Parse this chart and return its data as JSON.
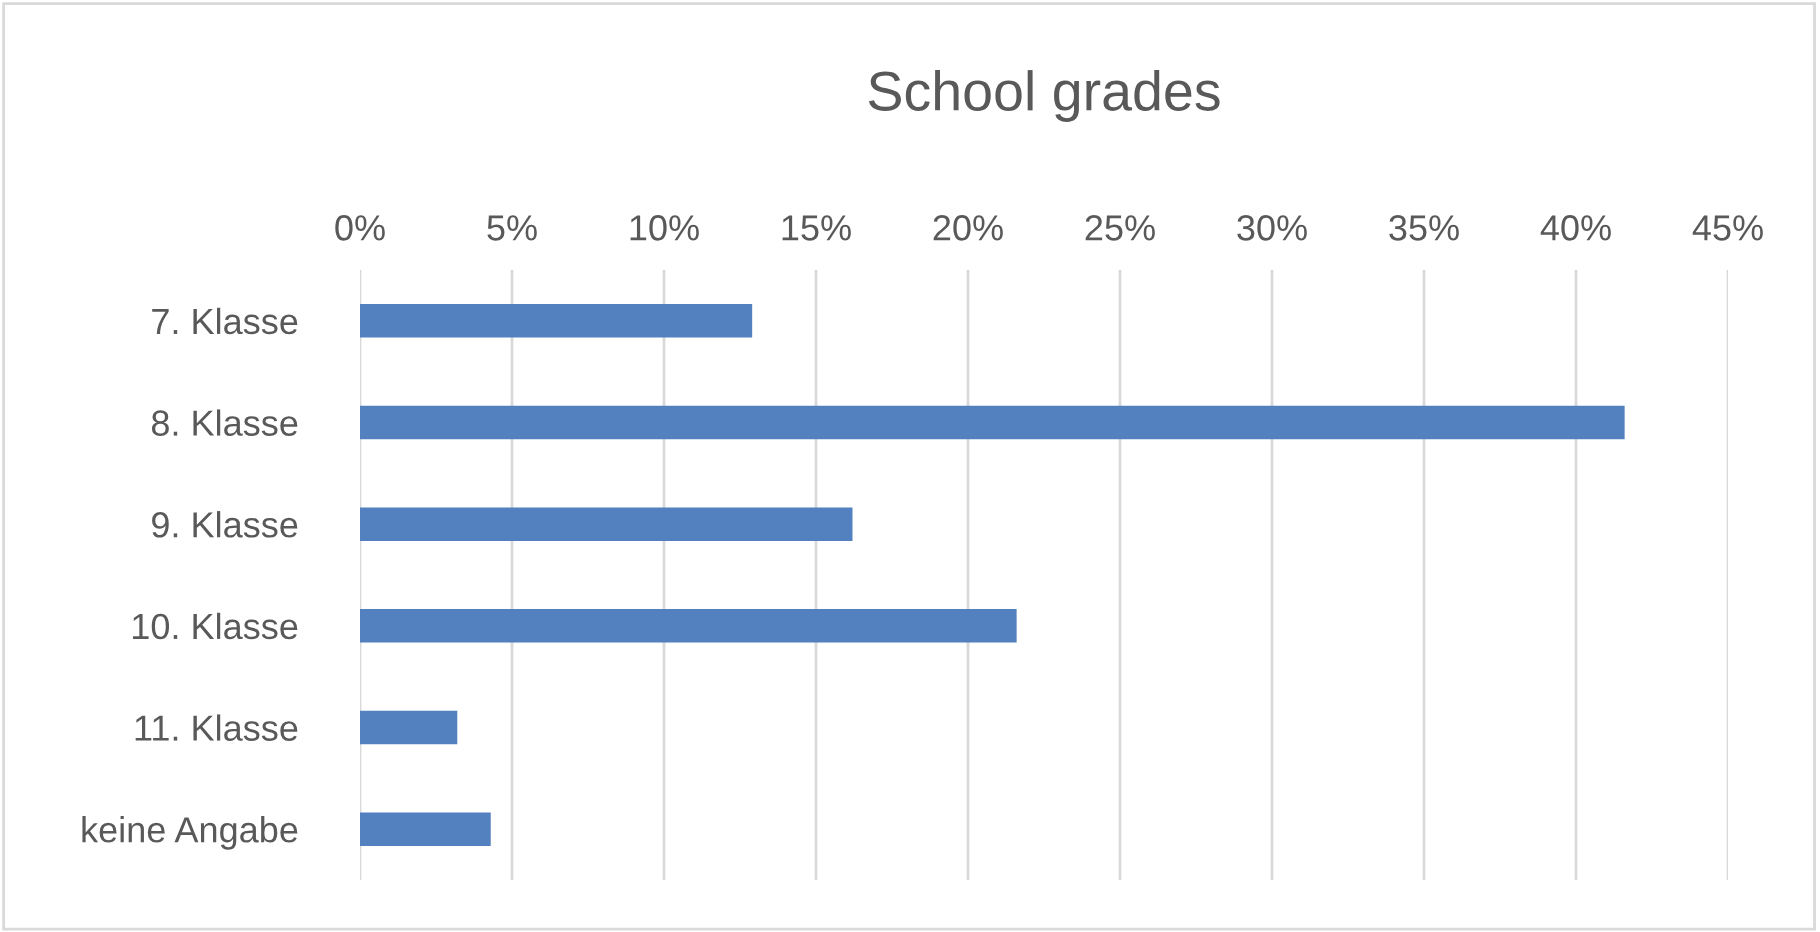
{
  "chart_data": {
    "type": "bar",
    "orientation": "horizontal",
    "title": "School grades",
    "categories": [
      "7. Klasse",
      "8. Klasse",
      "9. Klasse",
      "10. Klasse",
      "11. Klasse",
      "keine Angabe"
    ],
    "values": [
      12.9,
      41.6,
      16.2,
      21.6,
      3.2,
      4.3
    ],
    "color": "#5381c0",
    "xlim": [
      0,
      45
    ],
    "xticks": [
      {
        "value": 0,
        "label": "0%"
      },
      {
        "value": 5,
        "label": "5%"
      },
      {
        "value": 10,
        "label": "10%"
      },
      {
        "value": 15,
        "label": "15%"
      },
      {
        "value": 20,
        "label": "20%"
      },
      {
        "value": 25,
        "label": "25%"
      },
      {
        "value": 30,
        "label": "30%"
      },
      {
        "value": 35,
        "label": "35%"
      },
      {
        "value": 40,
        "label": "40%"
      },
      {
        "value": 45,
        "label": "45%"
      }
    ],
    "grid": "x",
    "legend": false
  }
}
